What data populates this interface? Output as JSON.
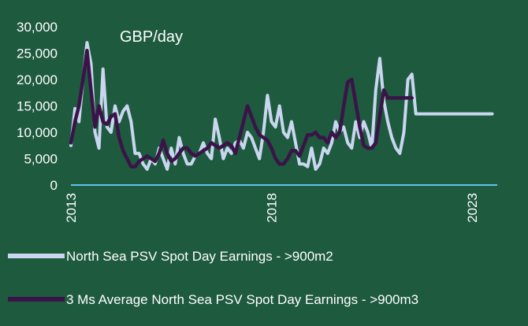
{
  "chart_data": {
    "type": "line",
    "unit_label": "GBP/day",
    "ylim": [
      0,
      30000
    ],
    "y_ticks": [
      "30,000",
      "25,000",
      "20,000",
      "15,000",
      "10,000",
      "5,000",
      "0"
    ],
    "y_tick_values": [
      30000,
      25000,
      20000,
      15000,
      10000,
      5000,
      0
    ],
    "x_range": [
      2013.0,
      2023.55
    ],
    "x_ticks": [
      {
        "label": "2013",
        "value": 2013
      },
      {
        "label": "2018",
        "value": 2018
      },
      {
        "label": "2023",
        "value": 2023
      }
    ],
    "grid": false,
    "legend_position": "bottom",
    "colors": {
      "background": "#1e5a3e",
      "spot_series": "#c9d6ef",
      "avg_series": "#3a1448",
      "axis_line": "#5bc6e8",
      "text": "#ffffff"
    },
    "series": [
      {
        "name": "North Sea PSV Spot Day Earnings - >900m2",
        "x": [
          2013.0,
          2013.1,
          2013.2,
          2013.3,
          2013.4,
          2013.5,
          2013.6,
          2013.7,
          2013.8,
          2013.9,
          2014.0,
          2014.1,
          2014.2,
          2014.3,
          2014.4,
          2014.5,
          2014.6,
          2014.7,
          2014.8,
          2014.9,
          2015.0,
          2015.1,
          2015.2,
          2015.3,
          2015.4,
          2015.5,
          2015.6,
          2015.7,
          2015.8,
          2015.9,
          2016.0,
          2016.1,
          2016.2,
          2016.3,
          2016.4,
          2016.5,
          2016.6,
          2016.7,
          2016.8,
          2016.9,
          2017.0,
          2017.1,
          2017.2,
          2017.3,
          2017.4,
          2017.5,
          2017.6,
          2017.7,
          2017.8,
          2017.9,
          2018.0,
          2018.1,
          2018.2,
          2018.3,
          2018.4,
          2018.5,
          2018.6,
          2018.7,
          2018.8,
          2018.9,
          2019.0,
          2019.1,
          2019.2,
          2019.3,
          2019.4,
          2019.5,
          2019.6,
          2019.7,
          2019.8,
          2019.9,
          2020.0,
          2020.1,
          2020.2,
          2020.3,
          2020.4,
          2020.5,
          2020.6,
          2020.7,
          2020.8,
          2020.9,
          2021.0,
          2021.1,
          2021.2,
          2021.3,
          2021.4,
          2021.5,
          2021.6,
          2021.7,
          2021.8,
          2021.9,
          2022.0,
          2022.1,
          2022.2,
          2022.3,
          2022.4,
          2022.5,
          2022.6,
          2022.7,
          2022.8,
          2022.9,
          2023.0,
          2023.1,
          2023.2,
          2023.3,
          2023.4,
          2023.5
        ],
        "values": [
          7500,
          14500,
          12000,
          20000,
          27000,
          23000,
          10000,
          7000,
          22000,
          11000,
          10000,
          15000,
          12000,
          14000,
          15000,
          12000,
          6000,
          6000,
          4000,
          3000,
          5000,
          4000,
          7000,
          5000,
          3000,
          7000,
          4000,
          9000,
          6000,
          4000,
          4000,
          5500,
          6000,
          8000,
          6000,
          5000,
          12500,
          9000,
          5000,
          7000,
          6000,
          8000,
          8500,
          7000,
          10000,
          9000,
          7000,
          5000,
          10000,
          17000,
          12000,
          11000,
          15000,
          10000,
          9000,
          12000,
          8000,
          4000,
          4000,
          3500,
          7000,
          3000,
          4000,
          7000,
          6000,
          8000,
          12000,
          10000,
          11000,
          8000,
          7000,
          12000,
          9000,
          12000,
          10000,
          7000,
          18000,
          24000,
          16000,
          12000,
          9000,
          7000,
          6000,
          10000,
          20000,
          21000,
          13500,
          13500,
          13500,
          13500,
          13500,
          13500,
          13500,
          13500,
          13500,
          13500,
          13500,
          13500,
          13500,
          13500,
          13500,
          13500,
          13500,
          13500,
          13500,
          13500
        ]
      },
      {
        "name": "3 Ms Average North Sea PSV Spot Day Earnings - >900m3",
        "x": [
          2013.0,
          2013.1,
          2013.2,
          2013.3,
          2013.4,
          2013.5,
          2013.6,
          2013.7,
          2013.8,
          2013.9,
          2014.0,
          2014.1,
          2014.2,
          2014.3,
          2014.4,
          2014.5,
          2014.6,
          2014.7,
          2014.8,
          2014.9,
          2015.0,
          2015.1,
          2015.2,
          2015.3,
          2015.4,
          2015.5,
          2015.6,
          2015.7,
          2015.8,
          2015.9,
          2016.0,
          2016.1,
          2016.2,
          2016.3,
          2016.4,
          2016.5,
          2016.6,
          2016.7,
          2016.8,
          2016.9,
          2017.0,
          2017.1,
          2017.2,
          2017.3,
          2017.4,
          2017.5,
          2017.6,
          2017.7,
          2017.8,
          2017.9,
          2018.0,
          2018.1,
          2018.2,
          2018.3,
          2018.4,
          2018.5,
          2018.6,
          2018.7,
          2018.8,
          2018.9,
          2019.0,
          2019.1,
          2019.2,
          2019.3,
          2019.4,
          2019.5,
          2019.6,
          2019.7,
          2019.8,
          2019.9,
          2020.0,
          2020.1,
          2020.2,
          2020.3,
          2020.4,
          2020.5,
          2020.6,
          2020.7,
          2020.8,
          2020.9,
          2021.0,
          2021.1,
          2021.2,
          2021.3,
          2021.4,
          2021.5
        ],
        "values": [
          8000,
          12000,
          15000,
          20000,
          25500,
          18000,
          11000,
          15000,
          12000,
          11500,
          13000,
          13500,
          9000,
          6500,
          5000,
          3500,
          3500,
          4500,
          5000,
          5500,
          5000,
          4500,
          6000,
          8500,
          6000,
          4500,
          5000,
          6000,
          7000,
          7000,
          6000,
          5500,
          6000,
          6500,
          7000,
          8000,
          7500,
          7000,
          7500,
          8000,
          7500,
          6000,
          9000,
          12000,
          15000,
          13000,
          11000,
          9500,
          9000,
          8500,
          7000,
          5000,
          4000,
          4000,
          5000,
          6500,
          6500,
          5500,
          7500,
          9500,
          9500,
          10000,
          9000,
          9000,
          8000,
          10000,
          9000,
          10000,
          15000,
          19500,
          20000,
          15500,
          11000,
          7500,
          7000,
          7000,
          8000,
          13000,
          18000,
          16500,
          16500,
          16500,
          16500,
          16500,
          16500,
          16500
        ]
      }
    ]
  }
}
